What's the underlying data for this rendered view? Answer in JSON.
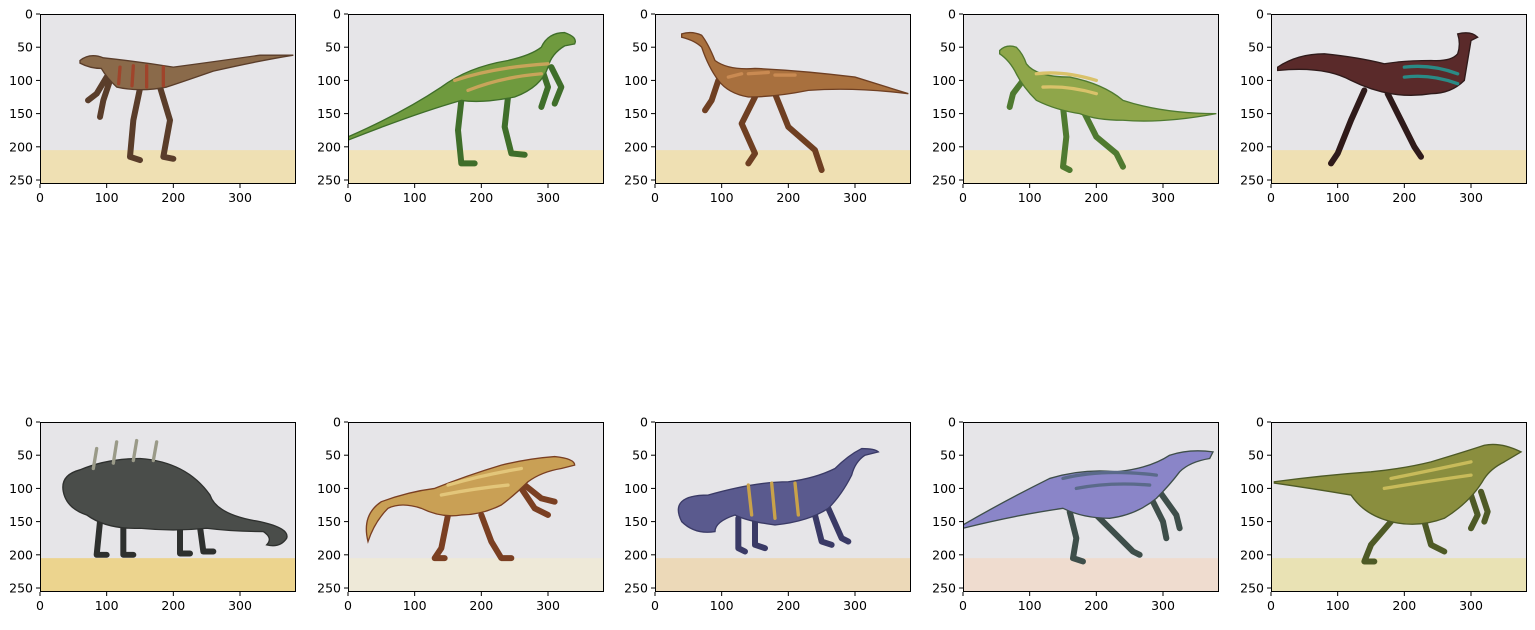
{
  "chart_data": [
    {
      "type": "image",
      "subject": "raptor-like theropod, brown with dark stripes",
      "xlim": [
        0,
        384
      ],
      "ylim": [
        256,
        0
      ],
      "xticks": [
        0,
        100,
        200,
        300
      ],
      "yticks": [
        0,
        50,
        100,
        150,
        200,
        250
      ],
      "colors": {
        "body": "#8a6a4a",
        "accent": "#5a3d2a",
        "stripe": "#a0442b",
        "ground": "#efe0b3"
      }
    },
    {
      "type": "image",
      "subject": "green ornithopod walking",
      "xlim": [
        0,
        384
      ],
      "ylim": [
        256,
        0
      ],
      "xticks": [
        0,
        100,
        200,
        300
      ],
      "yticks": [
        0,
        50,
        100,
        150,
        200,
        250
      ],
      "colors": {
        "body": "#6f9a3e",
        "accent": "#3f6e2a",
        "stripe": "#c8a45a",
        "ground": "#f1e3b9"
      }
    },
    {
      "type": "image",
      "subject": "brown small running theropod",
      "xlim": [
        0,
        384
      ],
      "ylim": [
        256,
        0
      ],
      "xticks": [
        0,
        100,
        200,
        300
      ],
      "yticks": [
        0,
        50,
        100,
        150,
        200,
        250
      ],
      "colors": {
        "body": "#a8703e",
        "accent": "#6f3f22",
        "stripe": "#c98a52",
        "ground": "#efe0b3"
      }
    },
    {
      "type": "image",
      "subject": "green-yellow small bipedal dinosaur",
      "xlim": [
        0,
        384
      ],
      "ylim": [
        256,
        0
      ],
      "xticks": [
        0,
        100,
        200,
        300
      ],
      "yticks": [
        0,
        50,
        100,
        150,
        200,
        250
      ],
      "colors": {
        "body": "#8fa64a",
        "accent": "#4f7a30",
        "stripe": "#d9c26a",
        "ground": "#f1e6c2"
      }
    },
    {
      "type": "image",
      "subject": "dark red feathered ornithomimid with teal feathers",
      "xlim": [
        0,
        384
      ],
      "ylim": [
        256,
        0
      ],
      "xticks": [
        0,
        100,
        200,
        300
      ],
      "yticks": [
        0,
        50,
        100,
        150,
        200,
        250
      ],
      "colors": {
        "body": "#5a2a2a",
        "accent": "#2f1a1a",
        "stripe": "#2a8a85",
        "ground": "#efe0b3"
      }
    },
    {
      "type": "image",
      "subject": "dark armored ankylosaur",
      "xlim": [
        0,
        384
      ],
      "ylim": [
        256,
        0
      ],
      "xticks": [
        0,
        100,
        200,
        300
      ],
      "yticks": [
        0,
        50,
        100,
        150,
        200,
        250
      ],
      "colors": {
        "body": "#4a4d4a",
        "accent": "#2e302e",
        "stripe": "#9a9a88",
        "ground": "#ecd48e"
      }
    },
    {
      "type": "image",
      "subject": "yellow-brown carnivorous theropod",
      "xlim": [
        0,
        384
      ],
      "ylim": [
        256,
        0
      ],
      "xticks": [
        0,
        100,
        200,
        300
      ],
      "yticks": [
        0,
        50,
        100,
        150,
        200,
        250
      ],
      "colors": {
        "body": "#c9a055",
        "accent": "#7a3f22",
        "stripe": "#e3c67a",
        "ground": "#eee9d8"
      }
    },
    {
      "type": "image",
      "subject": "blue-purple long-necked prosauropod",
      "xlim": [
        0,
        384
      ],
      "ylim": [
        256,
        0
      ],
      "xticks": [
        0,
        100,
        200,
        300
      ],
      "yticks": [
        0,
        50,
        100,
        150,
        200,
        250
      ],
      "colors": {
        "body": "#5a5a8e",
        "accent": "#3a3a66",
        "stripe": "#c9a24a",
        "ground": "#ecd9b8"
      }
    },
    {
      "type": "image",
      "subject": "violet-blue theropod with dark green back",
      "xlim": [
        0,
        384
      ],
      "ylim": [
        256,
        0
      ],
      "xticks": [
        0,
        100,
        200,
        300
      ],
      "yticks": [
        0,
        50,
        100,
        150,
        200,
        250
      ],
      "colors": {
        "body": "#8a85c8",
        "accent": "#3e4e4a",
        "stripe": "#5a6a8a",
        "ground": "#efdccf"
      }
    },
    {
      "type": "image",
      "subject": "olive green large theropod",
      "xlim": [
        0,
        384
      ],
      "ylim": [
        256,
        0
      ],
      "xticks": [
        0,
        100,
        200,
        300
      ],
      "yticks": [
        0,
        50,
        100,
        150,
        200,
        250
      ],
      "colors": {
        "body": "#8a8e3e",
        "accent": "#4e5a26",
        "stripe": "#c8bb5a",
        "ground": "#e9e2b4"
      }
    }
  ]
}
